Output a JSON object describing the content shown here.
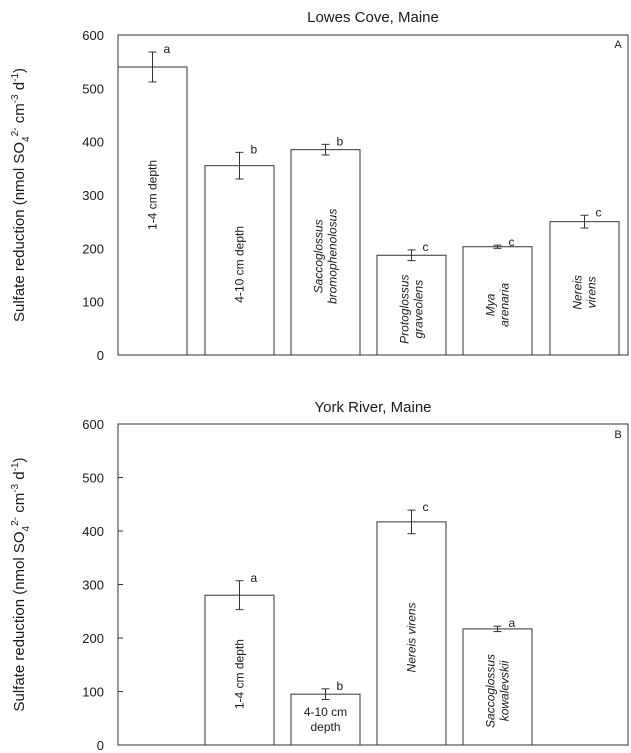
{
  "chart_data": [
    {
      "type": "bar",
      "title": "Lowes Cove, Maine",
      "panel_label": "A",
      "ylabel": "Sulfate reduction (nmol SO₄²⁻ cm⁻³ d⁻¹)",
      "ylabel_parts": [
        "Sulfate reduction (nmol SO",
        "4",
        "2-",
        " cm",
        "-3",
        " d",
        "-1",
        ")"
      ],
      "ylim": [
        0,
        600
      ],
      "yticks": [
        0,
        100,
        200,
        300,
        400,
        500,
        600
      ],
      "grid": false,
      "legend": "none",
      "categories": [
        [
          "1-4 cm depth"
        ],
        [
          "4-10 cm depth"
        ],
        [
          "Saccoglossus",
          "bromophenolosus"
        ],
        [
          "Protoglossus",
          "graveolens"
        ],
        [
          "Mya",
          "arenaria"
        ],
        [
          "Nereis",
          "virens"
        ]
      ],
      "italic": [
        false,
        false,
        true,
        true,
        true,
        true
      ],
      "values": [
        540,
        355,
        385,
        187,
        203,
        250
      ],
      "errors": [
        28,
        25,
        10,
        10,
        3,
        12
      ],
      "letters": [
        "a",
        "b",
        "b",
        "c",
        "c",
        "c"
      ]
    },
    {
      "type": "bar",
      "title": "York River, Maine",
      "panel_label": "B",
      "ylabel": "Sulfate reduction (nmol SO₄²⁻ cm⁻³ d⁻¹)",
      "ylabel_parts": [
        "Sulfate reduction (nmol SO",
        "4",
        "2-",
        " cm",
        "-3",
        " d",
        "-1",
        ")"
      ],
      "ylim": [
        0,
        600
      ],
      "yticks": [
        0,
        100,
        200,
        300,
        400,
        500,
        600
      ],
      "grid": false,
      "legend": "none",
      "categories": [
        [
          "1-4 cm depth"
        ],
        [
          "4-10 cm",
          "depth"
        ],
        [
          "Nereis virens"
        ],
        [
          "Saccoglossus",
          "kowalevskii"
        ]
      ],
      "italic": [
        false,
        false,
        true,
        true
      ],
      "values": [
        280,
        95,
        417,
        217
      ],
      "errors": [
        27,
        10,
        22,
        5
      ],
      "letters": [
        "a",
        "b",
        "c",
        "a"
      ]
    }
  ]
}
